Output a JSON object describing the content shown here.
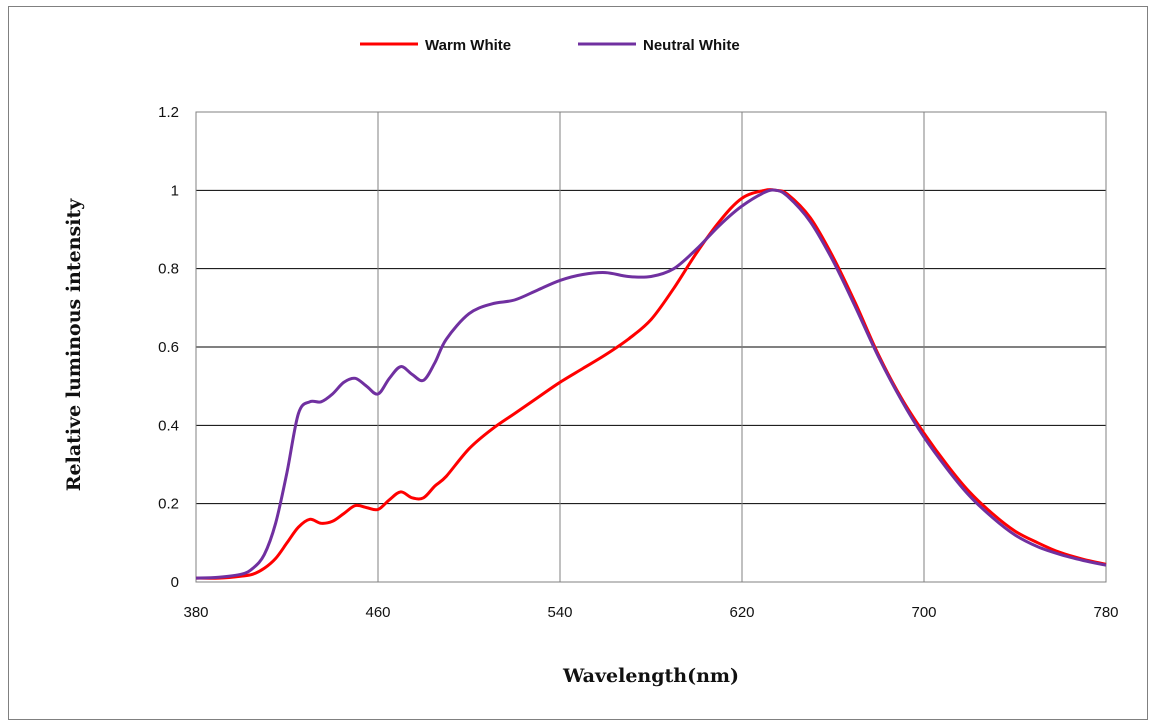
{
  "chart_data": {
    "type": "line",
    "title": "",
    "xlabel": "Wavelength(nm)",
    "ylabel": "Relative luminous intensity",
    "xlim": [
      380,
      780
    ],
    "ylim": [
      0,
      1.2
    ],
    "xticks": [
      "380",
      "460",
      "540",
      "620",
      "700",
      "780"
    ],
    "yticks": [
      "0",
      "0.2",
      "0.4",
      "0.6",
      "0.8",
      "1",
      "1.2"
    ],
    "grid": true,
    "legend_position": "top",
    "series": [
      {
        "name": "Warm White",
        "color": "#ff0000",
        "x": [
          380,
          390,
          400,
          405,
          410,
          415,
          420,
          425,
          430,
          435,
          440,
          445,
          450,
          455,
          460,
          465,
          470,
          475,
          480,
          485,
          490,
          500,
          510,
          520,
          530,
          540,
          550,
          560,
          570,
          580,
          590,
          600,
          610,
          620,
          630,
          635,
          640,
          650,
          660,
          670,
          680,
          690,
          700,
          710,
          720,
          730,
          740,
          750,
          760,
          770,
          780
        ],
        "y": [
          0.01,
          0.01,
          0.015,
          0.02,
          0.035,
          0.06,
          0.1,
          0.14,
          0.16,
          0.15,
          0.155,
          0.175,
          0.195,
          0.19,
          0.185,
          0.21,
          0.23,
          0.215,
          0.215,
          0.245,
          0.27,
          0.34,
          0.39,
          0.43,
          0.47,
          0.51,
          0.545,
          0.58,
          0.62,
          0.67,
          0.75,
          0.84,
          0.92,
          0.98,
          1.0,
          1.0,
          0.99,
          0.93,
          0.83,
          0.71,
          0.58,
          0.47,
          0.38,
          0.3,
          0.23,
          0.175,
          0.13,
          0.1,
          0.075,
          0.058,
          0.045
        ]
      },
      {
        "name": "Neutral White",
        "color": "#7030a0",
        "x": [
          380,
          390,
          400,
          405,
          410,
          415,
          420,
          425,
          430,
          435,
          440,
          445,
          450,
          455,
          460,
          465,
          470,
          475,
          480,
          485,
          490,
          500,
          510,
          520,
          530,
          540,
          550,
          560,
          570,
          580,
          590,
          600,
          610,
          620,
          630,
          635,
          640,
          650,
          660,
          670,
          680,
          690,
          700,
          710,
          720,
          730,
          740,
          750,
          760,
          770,
          780
        ],
        "y": [
          0.01,
          0.012,
          0.02,
          0.035,
          0.07,
          0.15,
          0.28,
          0.43,
          0.46,
          0.46,
          0.48,
          0.51,
          0.52,
          0.5,
          0.48,
          0.52,
          0.55,
          0.53,
          0.515,
          0.56,
          0.62,
          0.685,
          0.71,
          0.72,
          0.745,
          0.77,
          0.785,
          0.79,
          0.78,
          0.78,
          0.8,
          0.85,
          0.91,
          0.96,
          0.995,
          1.0,
          0.985,
          0.92,
          0.82,
          0.7,
          0.575,
          0.465,
          0.37,
          0.29,
          0.22,
          0.165,
          0.12,
          0.09,
          0.07,
          0.055,
          0.043
        ]
      }
    ]
  }
}
